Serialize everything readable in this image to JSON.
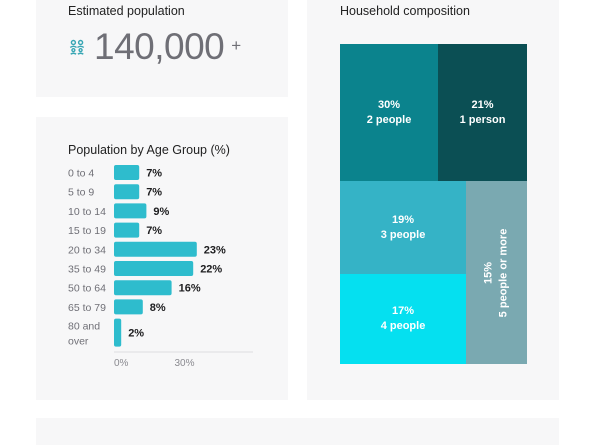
{
  "population": {
    "title": "Estimated population",
    "value": "140,000",
    "suffix": "+",
    "icon": "people-icon",
    "icon_color": "#37a6b4"
  },
  "age_card": {
    "title": "Population by Age Group (%)"
  },
  "chart_data": [
    {
      "type": "bar",
      "orientation": "horizontal",
      "title": "Population by Age Group (%)",
      "categories": [
        "0 to 4",
        "5 to 9",
        "10 to 14",
        "15 to 19",
        "20 to 34",
        "35 to 49",
        "50 to 64",
        "65 to 79",
        "80 and over"
      ],
      "category_lines": [
        [
          "0 to 4"
        ],
        [
          "5 to 9"
        ],
        [
          "10 to 14"
        ],
        [
          "15 to 19"
        ],
        [
          "20 to 34"
        ],
        [
          "35 to 49"
        ],
        [
          "50 to 64"
        ],
        [
          "65 to 79"
        ],
        [
          "80 and",
          "over"
        ]
      ],
      "values": [
        7,
        7,
        9,
        7,
        23,
        22,
        16,
        8,
        2
      ],
      "value_labels": [
        "7%",
        "7%",
        "9%",
        "7%",
        "23%",
        "22%",
        "16%",
        "8%",
        "2%"
      ],
      "xticks": [
        "0%",
        "30%"
      ],
      "xlim": [
        0,
        30
      ],
      "bar_color": "#2ebccd",
      "grid": false
    },
    {
      "type": "treemap",
      "title": "Household composition",
      "items": [
        {
          "percent": "30%",
          "label": "2 people",
          "value": 30,
          "color": "#0b838d"
        },
        {
          "percent": "21%",
          "label": "1 person",
          "value": 21,
          "color": "#0b4f54"
        },
        {
          "percent": "19%",
          "label": "3 people",
          "value": 19,
          "color": "#35b3c6"
        },
        {
          "percent": "17%",
          "label": "4 people",
          "value": 17,
          "color": "#05e0f0"
        },
        {
          "percent": "15%",
          "label": "5 people or more",
          "value": 15,
          "color": "#7aa9b1"
        }
      ]
    }
  ],
  "household": {
    "title": "Household composition"
  }
}
